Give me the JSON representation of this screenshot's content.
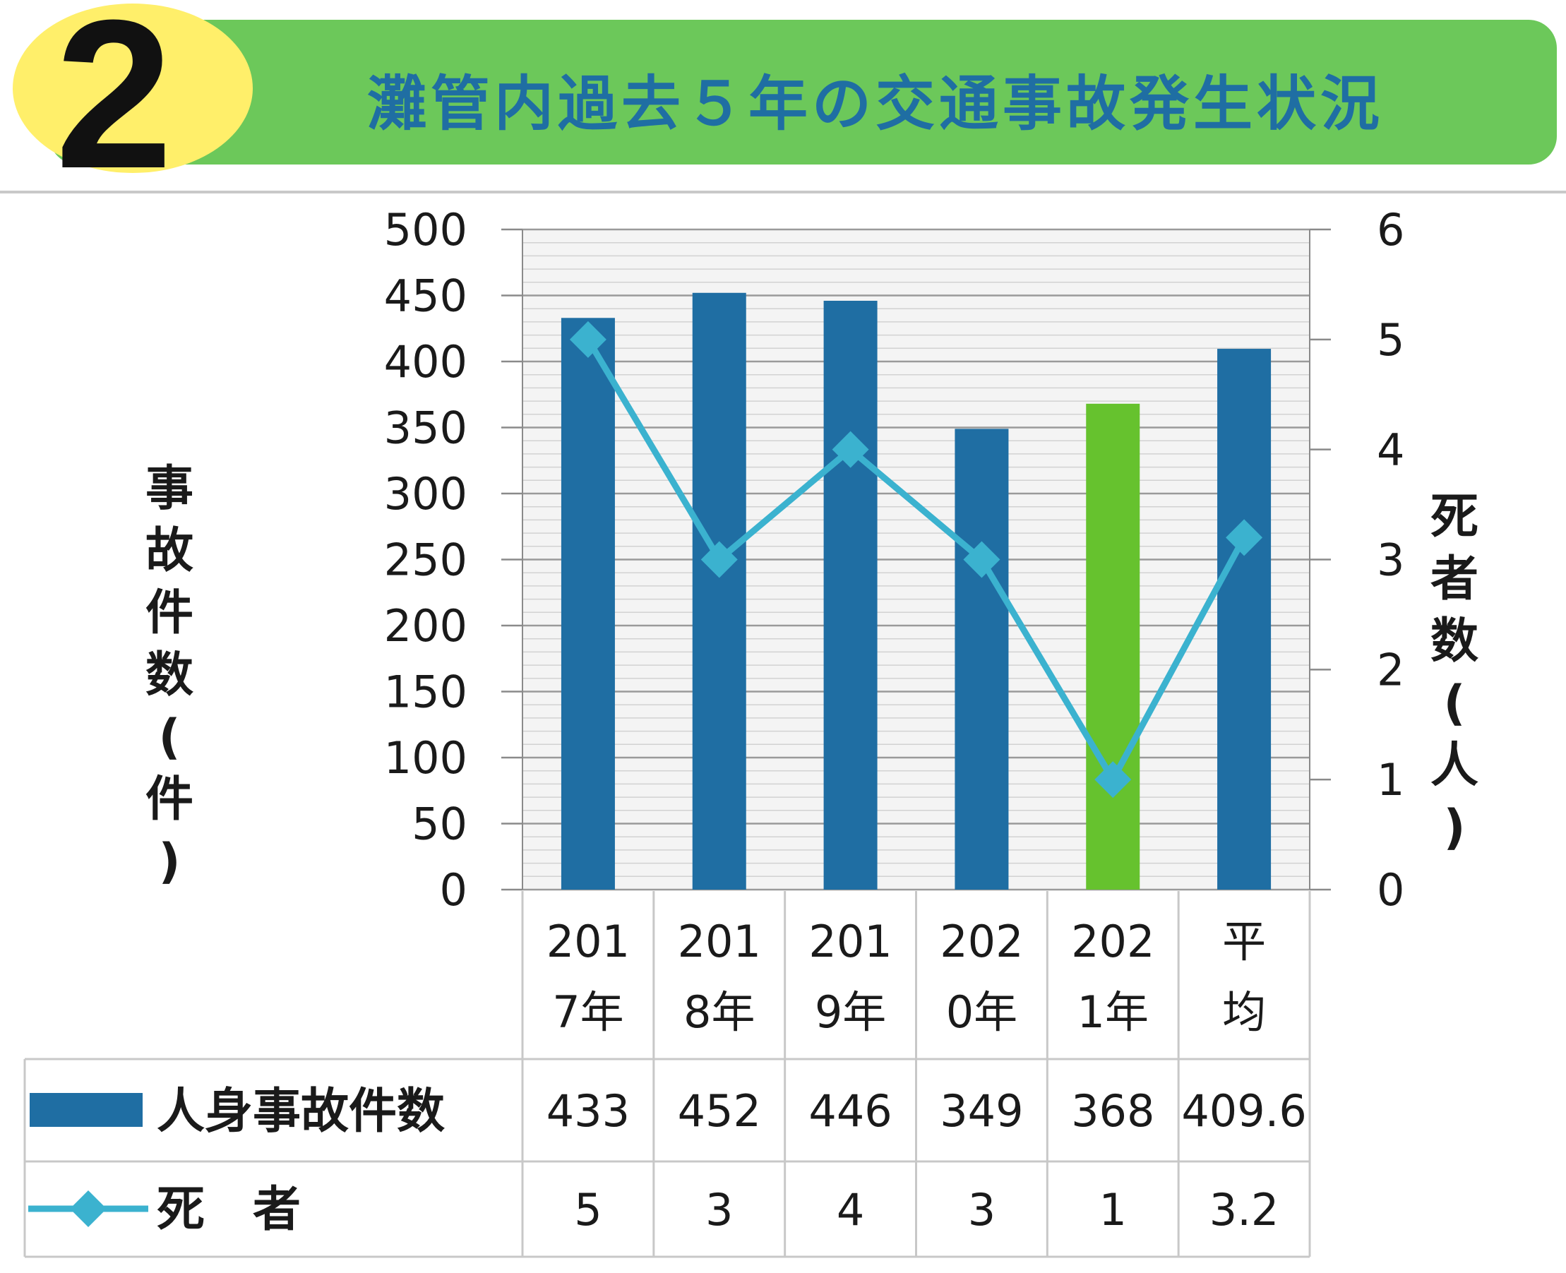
{
  "header": {
    "number": "2",
    "title": "灘管内過去５年の交通事故発生状況"
  },
  "chart_data": {
    "type": "bar",
    "categories": [
      [
        "201",
        "7年"
      ],
      [
        "201",
        "8年"
      ],
      [
        "201",
        "9年"
      ],
      [
        "202",
        "0年"
      ],
      [
        "202",
        "1年"
      ],
      [
        "平",
        "均"
      ]
    ],
    "series": [
      {
        "name": "人身事故件数",
        "type": "bar",
        "axis": "left",
        "values": [
          433,
          452,
          446,
          349,
          368,
          409.6
        ],
        "labels": [
          "433",
          "452",
          "446",
          "349",
          "368",
          "409.6"
        ],
        "color": "#1f6ea3",
        "highlight_index": 4,
        "highlight_color": "#66c22e"
      },
      {
        "name": "死　者",
        "type": "line",
        "axis": "right",
        "values": [
          5,
          3,
          4,
          3,
          1,
          3.2
        ],
        "labels": [
          "5",
          "3",
          "4",
          "3",
          "1",
          "3.2"
        ],
        "color": "#3bb2cf"
      }
    ],
    "ylabel": [
      "事",
      "故",
      "件",
      "数",
      "(",
      "件",
      ")"
    ],
    "y2label": [
      "死",
      "者",
      "数",
      "(",
      "人",
      ")"
    ],
    "ylim": [
      0,
      500
    ],
    "y2lim": [
      0,
      6
    ],
    "yticks": [
      "0",
      "50",
      "100",
      "150",
      "200",
      "250",
      "300",
      "350",
      "400",
      "450",
      "500"
    ],
    "y2ticks": [
      "0",
      "1",
      "2",
      "3",
      "4",
      "5",
      "6"
    ],
    "grid": true,
    "legend": "data-table"
  }
}
